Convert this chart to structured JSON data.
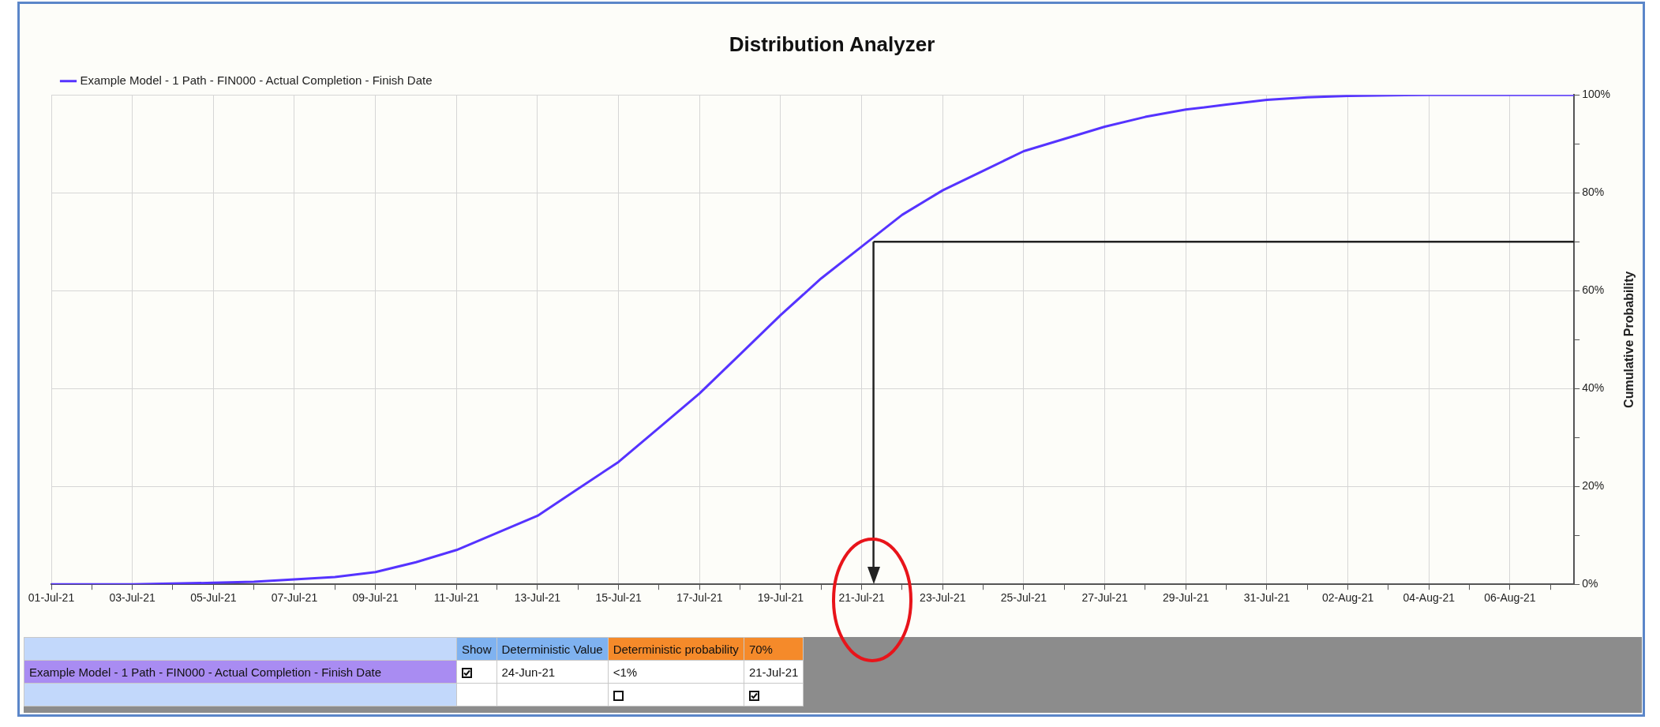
{
  "chart_data": {
    "type": "line",
    "title": "Distribution Analyzer",
    "ylabel": "Cumulative Probability",
    "x": [
      "--07-01",
      "--07-03",
      "--07-05",
      "--07-06",
      "--07-07",
      "--07-08",
      "--07-09",
      "--07-10",
      "--07-11",
      "--07-12",
      "--07-13",
      "--07-14",
      "--07-15",
      "--07-16",
      "--07-17",
      "--07-18",
      "--07-19",
      "--07-20",
      "--07-21",
      "--07-22",
      "--07-23",
      "--07-24",
      "--07-25",
      "--07-26",
      "--07-27",
      "--07-28",
      "--07-29",
      "--07-30",
      "--07-31",
      "--08-01",
      "--08-02",
      "--08-04",
      "--08-07T14:00"
    ],
    "series": [
      {
        "name": "Example Model - 1 Path - FIN000 - Actual Completion - Finish Date",
        "color": "#5533ff",
        "values": [
          0,
          0,
          0.3,
          0.5,
          1,
          1.5,
          2.5,
          4.5,
          7,
          10.5,
          14,
          19.5,
          25,
          32,
          39,
          47,
          55,
          62.5,
          69,
          75.5,
          80.5,
          84.5,
          88.5,
          91,
          93.5,
          95.5,
          97,
          98,
          99,
          99.5,
          99.8,
          100,
          100
        ]
      }
    ],
    "xlim": [
      "--07-01",
      "--08-07T14:00"
    ],
    "xticks": [
      {
        "value": "--07-01",
        "label": "01-Jul-21"
      },
      {
        "value": "--07-02",
        "label": null
      },
      {
        "value": "--07-03",
        "label": "03-Jul-21"
      },
      {
        "value": "--07-04",
        "label": null
      },
      {
        "value": "--07-05",
        "label": "05-Jul-21"
      },
      {
        "value": "--07-06",
        "label": null
      },
      {
        "value": "--07-07",
        "label": "07-Jul-21"
      },
      {
        "value": "--07-08",
        "label": null
      },
      {
        "value": "--07-09",
        "label": "09-Jul-21"
      },
      {
        "value": "--07-10",
        "label": null
      },
      {
        "value": "--07-11",
        "label": "11-Jul-21"
      },
      {
        "value": "--07-12",
        "label": null
      },
      {
        "value": "--07-13",
        "label": "13-Jul-21"
      },
      {
        "value": "--07-14",
        "label": null
      },
      {
        "value": "--07-15",
        "label": "15-Jul-21"
      },
      {
        "value": "--07-16",
        "label": null
      },
      {
        "value": "--07-17",
        "label": "17-Jul-21"
      },
      {
        "value": "--07-18",
        "label": null
      },
      {
        "value": "--07-19",
        "label": "19-Jul-21"
      },
      {
        "value": "--07-20",
        "label": null
      },
      {
        "value": "--07-21",
        "label": "21-Jul-21"
      },
      {
        "value": "--07-22",
        "label": null
      },
      {
        "value": "--07-23",
        "label": "23-Jul-21"
      },
      {
        "value": "--07-24",
        "label": null
      },
      {
        "value": "--07-25",
        "label": "25-Jul-21"
      },
      {
        "value": "--07-26",
        "label": null
      },
      {
        "value": "--07-27",
        "label": "27-Jul-21"
      },
      {
        "value": "--07-28",
        "label": null
      },
      {
        "value": "--07-29",
        "label": "29-Jul-21"
      },
      {
        "value": "--07-30",
        "label": null
      },
      {
        "value": "--07-31",
        "label": "31-Jul-21"
      },
      {
        "value": "--08-01",
        "label": null
      },
      {
        "value": "--08-02",
        "label": "02-Aug-21"
      },
      {
        "value": "--08-03",
        "label": null
      },
      {
        "value": "--08-04",
        "label": "04-Aug-21"
      },
      {
        "value": "--08-05",
        "label": null
      },
      {
        "value": "--08-06",
        "label": "06-Aug-21"
      },
      {
        "value": "--08-07",
        "label": null
      }
    ],
    "ylim": [
      0,
      100
    ],
    "yticks": [
      {
        "value": 0,
        "label": "0%"
      },
      {
        "value": 10,
        "label": null
      },
      {
        "value": 20,
        "label": "20%"
      },
      {
        "value": 30,
        "label": null
      },
      {
        "value": 40,
        "label": "40%"
      },
      {
        "value": 50,
        "label": null
      },
      {
        "value": 60,
        "label": "60%"
      },
      {
        "value": 70,
        "label": null
      },
      {
        "value": 80,
        "label": "80%"
      },
      {
        "value": 90,
        "label": null
      },
      {
        "value": 100,
        "label": "100%"
      }
    ],
    "ref_lines": [
      {
        "axis": "y",
        "value": 70,
        "color": "#222222"
      },
      {
        "axis": "x",
        "value": "--07-21T07:00",
        "color": "#222222"
      }
    ],
    "annotations": [
      "Show",
      "Deterministic Value",
      "Deterministic probability",
      "70%",
      "Example Model - 1 Path - FIN000 - Actual Completion - Finish Date",
      "24-Jun-21",
      "<1%",
      "21-Jul-21"
    ],
    "grid": true,
    "legend": "top left",
    "marker": "none",
    "line_style": "solid"
  }
}
